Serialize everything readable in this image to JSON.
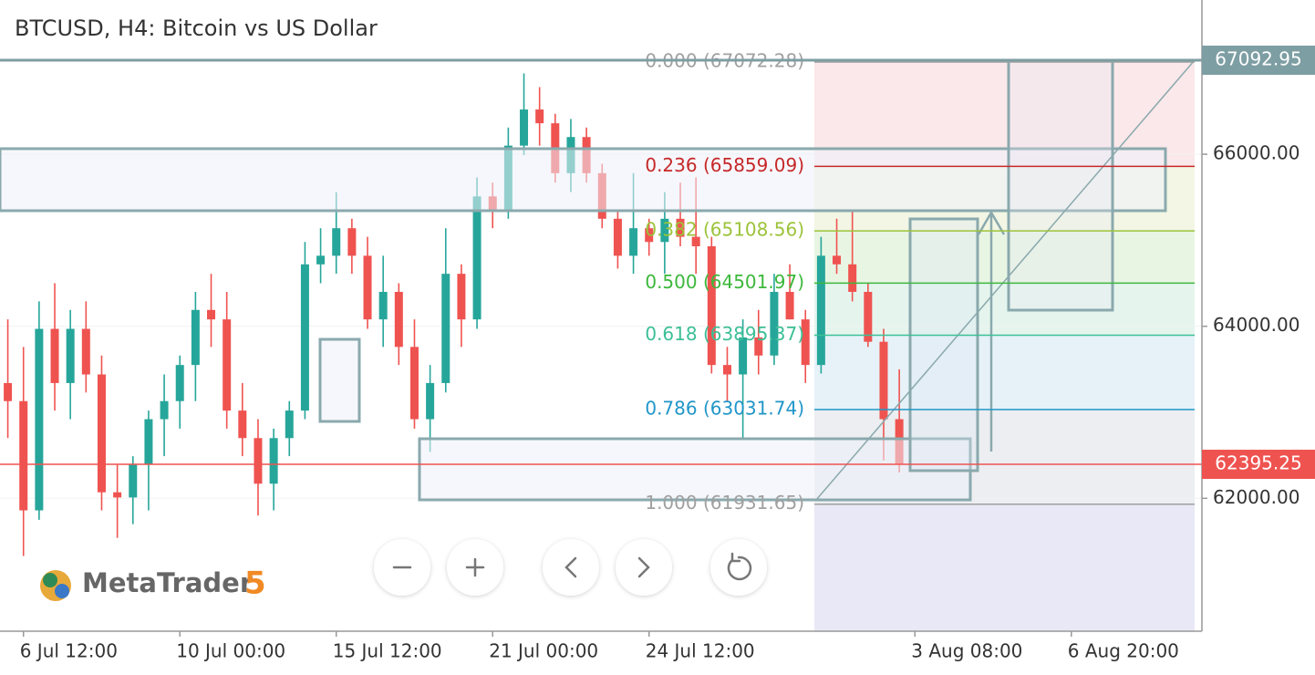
{
  "chart_data": {
    "type": "candlestick",
    "title": "BTCUSD, H4: Bitcoin vs US Dollar",
    "categories": [
      null,
      "6 Jul 12:00",
      null,
      null,
      null,
      null,
      null,
      null,
      null,
      null,
      null,
      "10 Jul 00:00",
      null,
      null,
      null,
      null,
      null,
      null,
      null,
      null,
      null,
      "15 Jul 12:00",
      null,
      null,
      null,
      null,
      null,
      null,
      null,
      null,
      null,
      "21 Jul 00:00",
      null,
      null,
      null,
      null,
      null,
      null,
      null,
      null,
      null,
      "24 Jul 12:00",
      null,
      null,
      null,
      null,
      null,
      null,
      null,
      null,
      null,
      null,
      null,
      null,
      null,
      null,
      null,
      null,
      "3 Aug 08:00",
      null,
      null,
      null,
      null,
      null,
      null,
      null,
      null,
      null,
      "6 Aug 20:00",
      null,
      null,
      null,
      null,
      null,
      null,
      null
    ],
    "open": [
      63340,
      63130,
      61860,
      63970,
      63340,
      63970,
      63440,
      62070,
      62010,
      62390,
      62920,
      63130,
      63550,
      64190,
      64080,
      63020,
      62700,
      62170,
      62700,
      63020,
      64720,
      64820,
      65140,
      64820,
      64080,
      64400,
      63760,
      62920,
      63340,
      64610,
      64080,
      65510,
      65350,
      66100,
      66520,
      66360,
      65780,
      66200,
      65780,
      65250,
      64820,
      65140,
      64980,
      65250,
      65040,
      64930,
      63550,
      63440,
      63870,
      63660,
      64400,
      64080,
      63550,
      64820,
      64720,
      64400,
      63820,
      62920,
      null,
      null,
      null,
      null,
      null,
      null,
      null,
      null,
      null,
      null,
      null,
      null,
      null,
      null,
      null,
      null,
      null,
      null
    ],
    "high": [
      64080,
      63760,
      64290,
      64500,
      64190,
      64290,
      63660,
      62390,
      62490,
      63020,
      63440,
      63660,
      64400,
      64610,
      64400,
      63340,
      62920,
      62810,
      63130,
      64980,
      65140,
      65560,
      65250,
      65040,
      64820,
      64500,
      64080,
      63550,
      65140,
      64720,
      65730,
      65670,
      66310,
      66940,
      66780,
      66470,
      66410,
      66310,
      65890,
      65350,
      65780,
      65250,
      65560,
      65670,
      65730,
      65040,
      63760,
      64080,
      64190,
      64610,
      64720,
      64190,
      65040,
      65250,
      65350,
      64500,
      63970,
      63500,
      null,
      null,
      null,
      null,
      null,
      null,
      null,
      null,
      null,
      null,
      null,
      null,
      null,
      null,
      null,
      null,
      null,
      null
    ],
    "low": [
      62700,
      61330,
      61750,
      63020,
      62920,
      63230,
      61860,
      61540,
      61700,
      61860,
      62490,
      62810,
      63130,
      63760,
      62810,
      62490,
      61800,
      61860,
      62490,
      62920,
      64500,
      64610,
      64610,
      63970,
      63760,
      63550,
      62810,
      62540,
      63230,
      63760,
      63970,
      65140,
      65250,
      65990,
      66100,
      65670,
      65560,
      65670,
      65140,
      64670,
      64610,
      64820,
      64610,
      64930,
      64610,
      63450,
      63130,
      62700,
      63440,
      63550,
      64080,
      63340,
      63450,
      64610,
      64290,
      63760,
      62440,
      62300,
      null,
      null,
      null,
      null,
      null,
      null,
      null,
      null,
      null,
      null,
      null,
      null,
      null,
      null,
      null,
      null,
      null,
      null
    ],
    "close": [
      63130,
      61860,
      63970,
      63340,
      63970,
      63440,
      62070,
      62010,
      62390,
      62920,
      63130,
      63550,
      64190,
      64080,
      63020,
      62700,
      62170,
      62700,
      63020,
      64720,
      64820,
      65140,
      64820,
      64080,
      64400,
      63760,
      62920,
      63340,
      64610,
      64080,
      65510,
      65350,
      66100,
      66520,
      66360,
      65780,
      66200,
      65780,
      65250,
      64820,
      65140,
      64980,
      65250,
      65040,
      64930,
      63550,
      63440,
      63870,
      63660,
      64400,
      64080,
      63550,
      64820,
      64720,
      64400,
      63820,
      62920,
      62395.25,
      null,
      null,
      null,
      null,
      null,
      null,
      null,
      null,
      null,
      null,
      null,
      null,
      null,
      null,
      null,
      null,
      null,
      null
    ],
    "up_color": "#26a69a",
    "down_color": "#ef5350",
    "ylim": [
      60455,
      67793
    ],
    "yticks": [
      {
        "value": 62000,
        "label": "62000.00"
      },
      {
        "value": 64000,
        "label": "64000.00"
      },
      {
        "value": 66000,
        "label": "66000.00"
      }
    ],
    "grid": true,
    "price_lines": [
      {
        "value": 67092.95,
        "color": "#7d9ea3"
      },
      {
        "value": 62395.25,
        "color": "#ef5350"
      }
    ],
    "fibonacci": {
      "levels": [
        {
          "label": "0.000 (67072.28)",
          "price": 67072.28,
          "color": "#a0a0a0",
          "fill": "#fbe8ea"
        },
        {
          "label": "0.236 (65859.09)",
          "price": 65859.09,
          "color": "#c62828",
          "fill": "#f3f6e4"
        },
        {
          "label": "0.382 (65108.56)",
          "price": 65108.56,
          "color": "#9cc33a",
          "fill": "#e9f5e3"
        },
        {
          "label": "0.500 (64501.97)",
          "price": 64501.97,
          "color": "#3cb83c",
          "fill": "#e5f5ee"
        },
        {
          "label": "0.618 (63895.37)",
          "price": 63895.37,
          "color": "#3dbf96",
          "fill": "#e6f2f8"
        },
        {
          "label": "0.786 (63031.74)",
          "price": 63031.74,
          "color": "#2196c8",
          "fill": "#eceef1"
        },
        {
          "label": "1.000 (61931.65)",
          "price": 61931.65,
          "color": "#a0a0a0",
          "fill": "#e8e8f6"
        }
      ]
    }
  },
  "watermark": {
    "name": "MetaTrader",
    "version": "5"
  }
}
